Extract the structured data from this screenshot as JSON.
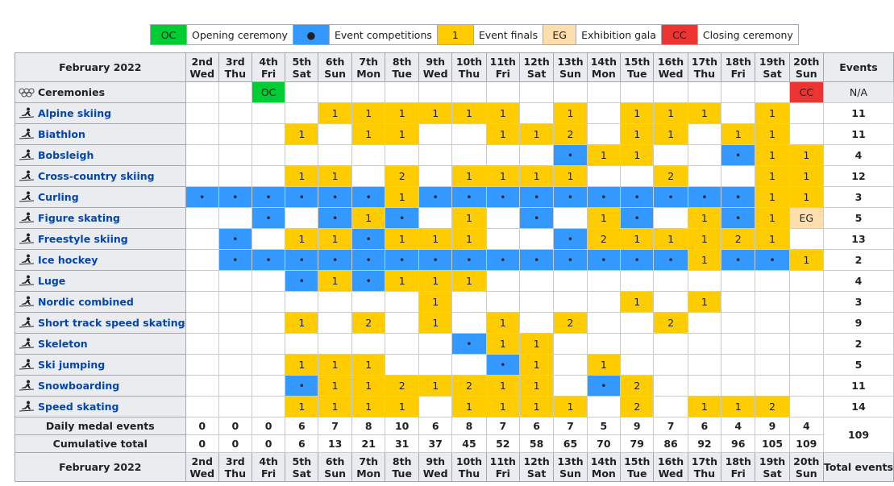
{
  "legend": [
    {
      "sym": "OC",
      "label": "Opening ceremony",
      "cls": "oc"
    },
    {
      "sym": "●",
      "label": "Event competitions",
      "cls": "ev"
    },
    {
      "sym": "1",
      "label": "Event finals",
      "cls": "fi"
    },
    {
      "sym": "EG",
      "label": "Exhibition gala",
      "cls": "eg"
    },
    {
      "sym": "CC",
      "label": "Closing ceremony",
      "cls": "cc"
    }
  ],
  "header": {
    "month": "February 2022",
    "days": [
      [
        "2nd",
        "Wed"
      ],
      [
        "3rd",
        "Thu"
      ],
      [
        "4th",
        "Fri"
      ],
      [
        "5th",
        "Sat"
      ],
      [
        "6th",
        "Sun"
      ],
      [
        "7th",
        "Mon"
      ],
      [
        "8th",
        "Tue"
      ],
      [
        "9th",
        "Wed"
      ],
      [
        "10th",
        "Thu"
      ],
      [
        "11th",
        "Fri"
      ],
      [
        "12th",
        "Sat"
      ],
      [
        "13th",
        "Sun"
      ],
      [
        "14th",
        "Mon"
      ],
      [
        "15th",
        "Tue"
      ],
      [
        "16th",
        "Wed"
      ],
      [
        "17th",
        "Thu"
      ],
      [
        "18th",
        "Fri"
      ],
      [
        "19th",
        "Sat"
      ],
      [
        "20th",
        "Sun"
      ]
    ],
    "events_label": "Events",
    "total_events_label": "Total events"
  },
  "rows": [
    {
      "name": "Ceremonies",
      "link": false,
      "icon": "olympic-rings-icon",
      "total": "N/A",
      "cells": [
        "",
        "",
        "OC",
        "",
        "",
        "",
        "",
        "",
        "",
        "",
        "",
        "",
        "",
        "",
        "",
        "",
        "",
        "",
        "CC"
      ]
    },
    {
      "name": "Alpine skiing",
      "link": true,
      "icon": "alpine-skiing-icon",
      "total": "11",
      "cells": [
        "",
        "",
        "",
        "",
        "1",
        "1",
        "1",
        "1",
        "1",
        "1",
        "",
        "1",
        "",
        "1",
        "1",
        "1",
        "",
        "1",
        ""
      ]
    },
    {
      "name": "Biathlon",
      "link": true,
      "icon": "biathlon-icon",
      "total": "11",
      "cells": [
        "",
        "",
        "",
        "1",
        "",
        "1",
        "1",
        "",
        "",
        "1",
        "1",
        "2",
        "",
        "1",
        "1",
        "",
        "1",
        "1",
        ""
      ]
    },
    {
      "name": "Bobsleigh",
      "link": true,
      "icon": "bobsleigh-icon",
      "total": "4",
      "cells": [
        "",
        "",
        "",
        "",
        "",
        "",
        "",
        "",
        "",
        "",
        "",
        "•",
        "1",
        "1",
        "",
        "",
        "•",
        "1",
        "1"
      ]
    },
    {
      "name": "Cross-country skiing",
      "link": true,
      "icon": "cross-country-skiing-icon",
      "total": "12",
      "cells": [
        "",
        "",
        "",
        "1",
        "1",
        "",
        "2",
        "",
        "1",
        "1",
        "1",
        "1",
        "",
        "",
        "2",
        "",
        "",
        "1",
        "1"
      ]
    },
    {
      "name": "Curling",
      "link": true,
      "icon": "curling-icon",
      "total": "3",
      "cells": [
        "•",
        "•",
        "•",
        "•",
        "•",
        "•",
        "1",
        "•",
        "•",
        "•",
        "•",
        "•",
        "•",
        "•",
        "•",
        "•",
        "•",
        "1",
        "1"
      ]
    },
    {
      "name": "Figure skating",
      "link": true,
      "icon": "figure-skating-icon",
      "total": "5",
      "cells": [
        "",
        "",
        "•",
        "",
        "•",
        "1",
        "•",
        "",
        "1",
        "",
        "•",
        "",
        "1",
        "•",
        "",
        "1",
        "•",
        "1",
        "EG"
      ]
    },
    {
      "name": "Freestyle skiing",
      "link": true,
      "icon": "freestyle-skiing-icon",
      "total": "13",
      "cells": [
        "",
        "•",
        "",
        "1",
        "1",
        "•",
        "1",
        "1",
        "1",
        "",
        "",
        "•",
        "2",
        "1",
        "1",
        "1",
        "2",
        "1",
        ""
      ]
    },
    {
      "name": "Ice hockey",
      "link": true,
      "icon": "ice-hockey-icon",
      "total": "2",
      "cells": [
        "",
        "•",
        "•",
        "•",
        "•",
        "•",
        "•",
        "•",
        "•",
        "•",
        "•",
        "•",
        "•",
        "•",
        "•",
        "1",
        "•",
        "•",
        "1"
      ]
    },
    {
      "name": "Luge",
      "link": true,
      "icon": "luge-icon",
      "total": "4",
      "cells": [
        "",
        "",
        "",
        "•",
        "1",
        "•",
        "1",
        "1",
        "1",
        "",
        "",
        "",
        "",
        "",
        "",
        "",
        "",
        "",
        ""
      ]
    },
    {
      "name": "Nordic combined",
      "link": true,
      "icon": "nordic-combined-icon",
      "total": "3",
      "cells": [
        "",
        "",
        "",
        "",
        "",
        "",
        "",
        "1",
        "",
        "",
        "",
        "",
        "",
        "1",
        "",
        "1",
        "",
        "",
        ""
      ]
    },
    {
      "name": "Short track speed skating",
      "link": true,
      "icon": "short-track-icon",
      "total": "9",
      "cells": [
        "",
        "",
        "",
        "1",
        "",
        "2",
        "",
        "1",
        "",
        "1",
        "",
        "2",
        "",
        "",
        "2",
        "",
        "",
        "",
        ""
      ]
    },
    {
      "name": "Skeleton",
      "link": true,
      "icon": "skeleton-icon",
      "total": "2",
      "cells": [
        "",
        "",
        "",
        "",
        "",
        "",
        "",
        "",
        "•",
        "1",
        "1",
        "",
        "",
        "",
        "",
        "",
        "",
        "",
        ""
      ]
    },
    {
      "name": "Ski jumping",
      "link": true,
      "icon": "ski-jumping-icon",
      "total": "5",
      "cells": [
        "",
        "",
        "",
        "1",
        "1",
        "1",
        "",
        "",
        "",
        "•",
        "1",
        "",
        "1",
        "",
        "",
        "",
        "",
        "",
        ""
      ]
    },
    {
      "name": "Snowboarding",
      "link": true,
      "icon": "snowboarding-icon",
      "total": "11",
      "cells": [
        "",
        "",
        "",
        "•",
        "1",
        "1",
        "2",
        "1",
        "2",
        "1",
        "1",
        "",
        "•",
        "2",
        "",
        "",
        "",
        "",
        ""
      ]
    },
    {
      "name": "Speed skating",
      "link": true,
      "icon": "speed-skating-icon",
      "total": "14",
      "cells": [
        "",
        "",
        "",
        "1",
        "1",
        "1",
        "1",
        "",
        "1",
        "1",
        "1",
        "1",
        "",
        "2",
        "",
        "1",
        "1",
        "2",
        ""
      ]
    }
  ],
  "daily": {
    "label": "Daily medal events",
    "values": [
      "0",
      "0",
      "0",
      "6",
      "7",
      "8",
      "10",
      "6",
      "8",
      "7",
      "6",
      "7",
      "5",
      "9",
      "7",
      "6",
      "4",
      "9",
      "4"
    ]
  },
  "cumulative": {
    "label": "Cumulative total",
    "values": [
      "0",
      "0",
      "0",
      "6",
      "13",
      "21",
      "31",
      "37",
      "45",
      "52",
      "58",
      "65",
      "70",
      "79",
      "86",
      "92",
      "96",
      "105",
      "109"
    ]
  },
  "grand_total": "109"
}
